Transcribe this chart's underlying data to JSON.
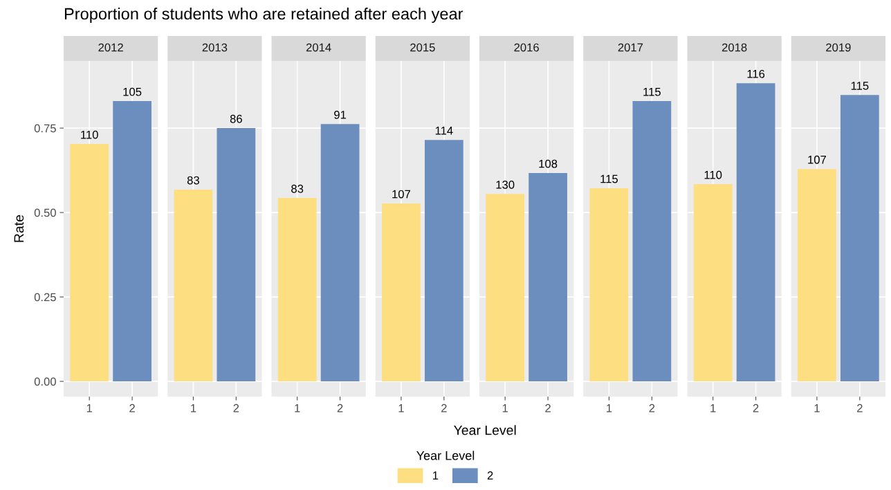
{
  "chart_data": [
    {
      "type": "bar",
      "title": "2012",
      "categories": [
        "1",
        "2"
      ],
      "values": [
        0.703,
        0.83
      ],
      "colors": [
        "#fdde80",
        "#6c8ebf"
      ],
      "annotations": [
        {
          "text": "110",
          "x": "1",
          "y": 0.703
        },
        {
          "text": "105",
          "x": "2",
          "y": 0.83
        },
        "Proportion of students who are retained after each year"
      ],
      "ylim": [
        -0.045,
        0.949
      ],
      "yticks": [
        {
          "value": 0,
          "label": "0.00"
        },
        {
          "value": 0.25,
          "label": "0.25"
        },
        {
          "value": 0.5,
          "label": "0.50"
        },
        {
          "value": 0.75,
          "label": "0.75"
        }
      ],
      "grid": true,
      "ylabel": "Rate"
    },
    {
      "type": "bar",
      "title": "2013",
      "categories": [
        "1",
        "2"
      ],
      "values": [
        0.568,
        0.75
      ],
      "colors": [
        "#fdde80",
        "#6c8ebf"
      ],
      "annotations": [
        {
          "text": "83",
          "x": "1",
          "y": 0.568
        },
        {
          "text": "86",
          "x": "2",
          "y": 0.75
        }
      ],
      "ylim": [
        -0.045,
        0.949
      ],
      "grid": true,
      "tick_labels": "x"
    },
    {
      "type": "bar",
      "title": "2014",
      "categories": [
        "1",
        "2"
      ],
      "values": [
        0.543,
        0.762
      ],
      "colors": [
        "#fdde80",
        "#6c8ebf"
      ],
      "annotations": [
        {
          "text": "83",
          "x": "1",
          "y": 0.543
        },
        {
          "text": "91",
          "x": "2",
          "y": 0.762
        }
      ],
      "ylim": [
        -0.045,
        0.949
      ],
      "grid": true,
      "tick_labels": "x"
    },
    {
      "type": "bar",
      "title": "2015",
      "categories": [
        "1",
        "2"
      ],
      "values": [
        0.527,
        0.715
      ],
      "colors": [
        "#fdde80",
        "#6c8ebf"
      ],
      "annotations": [
        {
          "text": "107",
          "x": "1",
          "y": 0.527
        },
        {
          "text": "114",
          "x": "2",
          "y": 0.715
        }
      ],
      "ylim": [
        -0.045,
        0.949
      ],
      "grid": true,
      "tick_labels": "x"
    },
    {
      "type": "bar",
      "title": "2016",
      "categories": [
        "1",
        "2"
      ],
      "series": [
        {
          "name": "1",
          "color": "#fdde80",
          "values": [
            0.555,
            null
          ]
        },
        {
          "name": "2",
          "color": "#6c8ebf",
          "values": [
            null,
            0.617
          ]
        }
      ],
      "annotations": [
        {
          "text": "130",
          "x": "1",
          "y": 0.555
        },
        {
          "text": "108",
          "x": "2",
          "y": 0.617
        }
      ],
      "ylim": [
        -0.045,
        0.949
      ],
      "grid": true,
      "tick_labels": "x",
      "xlabel": "Year Level",
      "legend_title": "Year Level",
      "legend": "bottom"
    },
    {
      "type": "bar",
      "title": "2017",
      "categories": [
        "1",
        "2"
      ],
      "values": [
        0.572,
        0.83
      ],
      "colors": [
        "#fdde80",
        "#6c8ebf"
      ],
      "annotations": [
        {
          "text": "115",
          "x": "1",
          "y": 0.572
        },
        {
          "text": "115",
          "x": "2",
          "y": 0.83
        }
      ],
      "ylim": [
        -0.045,
        0.949
      ],
      "grid": true,
      "tick_labels": "x"
    },
    {
      "type": "bar",
      "title": "2018",
      "categories": [
        "1",
        "2"
      ],
      "values": [
        0.584,
        0.883
      ],
      "colors": [
        "#fdde80",
        "#6c8ebf"
      ],
      "annotations": [
        {
          "text": "110",
          "x": "1",
          "y": 0.584
        },
        {
          "text": "116",
          "x": "2",
          "y": 0.883
        }
      ],
      "ylim": [
        -0.045,
        0.949
      ],
      "grid": true,
      "tick_labels": "x"
    },
    {
      "type": "bar",
      "title": "2019",
      "categories": [
        "1",
        "2"
      ],
      "values": [
        0.629,
        0.848
      ],
      "colors": [
        "#fdde80",
        "#6c8ebf"
      ],
      "annotations": [
        {
          "text": "107",
          "x": "1",
          "y": 0.629
        },
        {
          "text": "115",
          "x": "2",
          "y": 0.848
        }
      ],
      "ylim": [
        -0.045,
        0.949
      ],
      "grid": true,
      "tick_labels": "x"
    }
  ]
}
